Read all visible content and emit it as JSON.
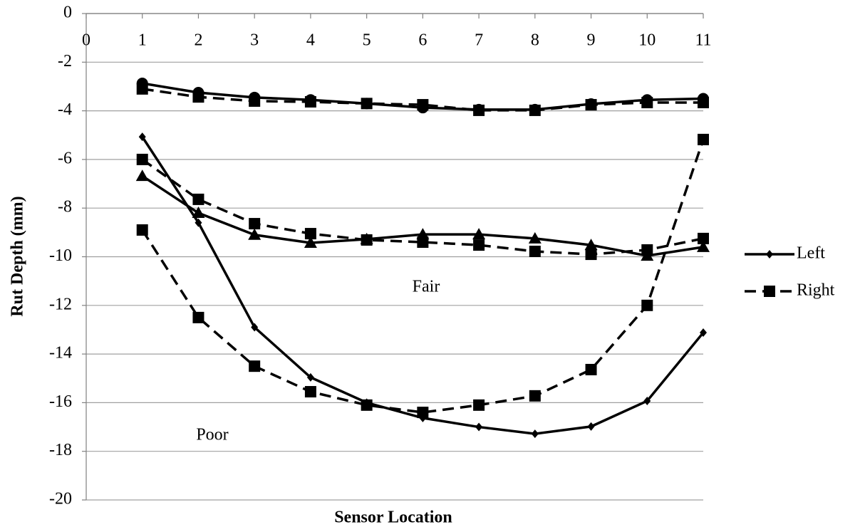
{
  "chart_data": {
    "type": "line",
    "x_label": "Sensor Location",
    "y_label": "Rut Depth (mm)",
    "x": [
      1,
      2,
      3,
      4,
      5,
      6,
      7,
      8,
      9,
      10,
      11
    ],
    "xlim": [
      0,
      11
    ],
    "xticks": [
      0,
      1,
      2,
      3,
      4,
      5,
      6,
      7,
      8,
      9,
      10,
      11
    ],
    "ylim": [
      -20,
      0
    ],
    "yticks": [
      0,
      -2,
      -4,
      -6,
      -8,
      -10,
      -12,
      -14,
      -16,
      -18,
      -20
    ],
    "grid": true,
    "legend": "right",
    "annotations": [
      "Fair",
      "Poor"
    ],
    "series": [
      {
        "color": "#000000",
        "dash": false,
        "marker": "circle",
        "values": [
          -2.87,
          -3.25,
          -3.45,
          -3.55,
          -3.7,
          -3.87,
          -3.95,
          -3.95,
          -3.72,
          -3.55,
          -3.5
        ]
      },
      {
        "color": "#000000",
        "dash": true,
        "marker": "square",
        "values": [
          -3.1,
          -3.43,
          -3.6,
          -3.63,
          -3.7,
          -3.75,
          -3.98,
          -3.98,
          -3.75,
          -3.66,
          -3.66
        ]
      },
      {
        "color": "#000000",
        "dash": false,
        "marker": "triangle",
        "values": [
          -6.68,
          -8.2,
          -9.1,
          -9.43,
          -9.28,
          -9.08,
          -9.08,
          -9.25,
          -9.52,
          -9.96,
          -9.6
        ]
      },
      {
        "color": "#000000",
        "dash": true,
        "marker": "square",
        "values": [
          -6.0,
          -7.64,
          -8.64,
          -9.05,
          -9.31,
          -9.4,
          -9.52,
          -9.78,
          -9.9,
          -9.72,
          -9.25
        ]
      },
      {
        "name": "Left",
        "color": "#000000",
        "dash": false,
        "marker": "diamond",
        "values": [
          -5.07,
          -8.6,
          -12.9,
          -14.96,
          -16.0,
          -16.63,
          -17.0,
          -17.28,
          -16.98,
          -15.93,
          -13.12
        ]
      },
      {
        "name": "Right",
        "color": "#000000",
        "dash": true,
        "marker": "square",
        "values": [
          -8.9,
          -12.5,
          -14.5,
          -15.55,
          -16.1,
          -16.4,
          -16.1,
          -15.72,
          -14.64,
          -12.0,
          -5.18
        ]
      }
    ]
  }
}
